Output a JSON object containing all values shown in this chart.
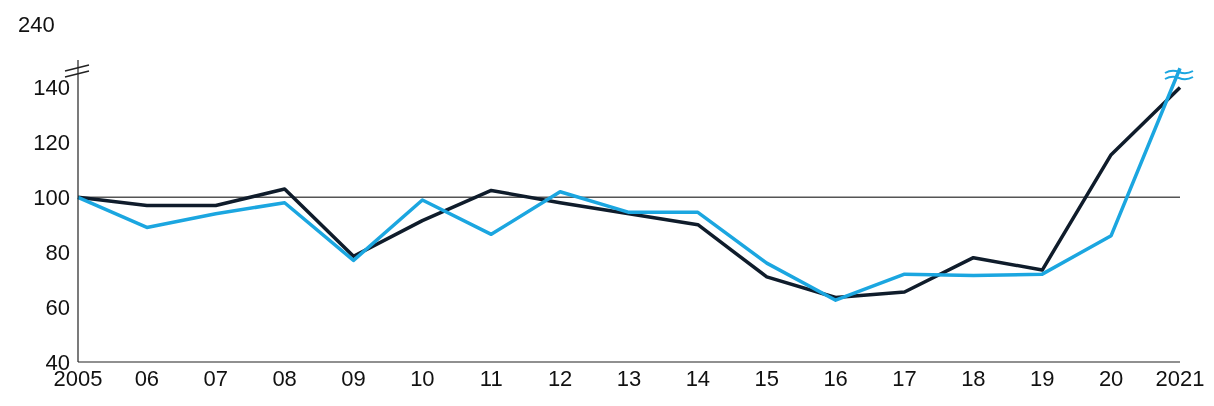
{
  "chart_data": {
    "type": "line",
    "categories": [
      "2005",
      "06",
      "07",
      "08",
      "09",
      "10",
      "11",
      "12",
      "13",
      "14",
      "15",
      "16",
      "17",
      "18",
      "19",
      "20",
      "2021"
    ],
    "series": [
      {
        "color": "#0f1c2b",
        "values": [
          100,
          97,
          97,
          103,
          78.5,
          91.5,
          102.5,
          98,
          94,
          90,
          71,
          63.5,
          65.5,
          78,
          73.5,
          115.5,
          140
        ]
      },
      {
        "color": "#1ba6e0",
        "values": [
          100,
          89,
          94,
          98,
          77,
          99,
          86.5,
          102,
          94.5,
          94.5,
          76,
          62.5,
          72,
          71.5,
          72,
          86,
          147
        ]
      }
    ],
    "ylim": [
      40,
      150
    ],
    "yticks": [
      40,
      60,
      80,
      100,
      120,
      140
    ],
    "ref_lines": [
      {
        "axis": "y",
        "value": 100,
        "color": "#555555"
      }
    ],
    "annotations": [
      "240"
    ],
    "grid": false,
    "legend": false,
    "marker": "none",
    "line_style": "solid"
  }
}
